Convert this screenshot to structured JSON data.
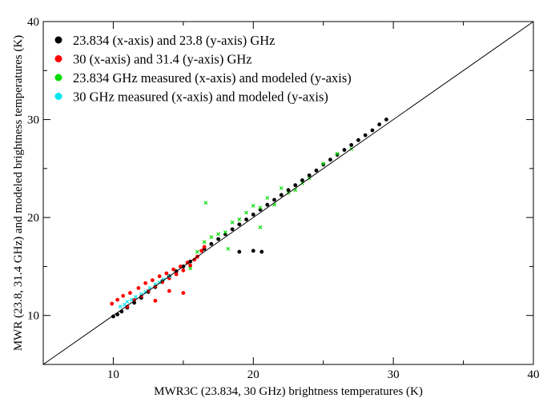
{
  "chart_data": {
    "type": "scatter",
    "title": "",
    "xlabel": "MWR3C (23.834, 30 GHz) brightness temperatures (K)",
    "ylabel": "MWR (23.8, 31.4 GHz) and modeled brightness temperatures  (K)",
    "xlim": [
      5,
      40
    ],
    "ylim": [
      5,
      40
    ],
    "x_ticks": [
      10,
      20,
      30,
      40
    ],
    "y_ticks": [
      10,
      20,
      30,
      40
    ],
    "grid": false,
    "legend_position": "top-left",
    "reference_line": {
      "from": [
        5,
        5
      ],
      "to": [
        40,
        40
      ]
    },
    "series": [
      {
        "name": "23.834 (x-axis) and 23.8 (y-axis) GHz",
        "color": "#000000",
        "marker": "dot",
        "points": [
          [
            10.0,
            9.9
          ],
          [
            10.3,
            10.1
          ],
          [
            10.6,
            10.4
          ],
          [
            11.0,
            10.8
          ],
          [
            11.5,
            11.3
          ],
          [
            12.0,
            11.8
          ],
          [
            12.5,
            12.4
          ],
          [
            13.0,
            12.9
          ],
          [
            13.5,
            13.5
          ],
          [
            14.0,
            14.0
          ],
          [
            14.5,
            14.5
          ],
          [
            15.0,
            15.0
          ],
          [
            15.5,
            15.5
          ],
          [
            16.0,
            16.0
          ],
          [
            16.5,
            16.8
          ],
          [
            17.0,
            17.3
          ],
          [
            17.5,
            17.8
          ],
          [
            18.0,
            18.3
          ],
          [
            18.5,
            18.8
          ],
          [
            19.0,
            19.3
          ],
          [
            19.5,
            19.8
          ],
          [
            20.0,
            20.3
          ],
          [
            20.5,
            20.8
          ],
          [
            21.0,
            21.3
          ],
          [
            21.5,
            21.8
          ],
          [
            22.0,
            22.3
          ],
          [
            22.5,
            22.8
          ],
          [
            23.0,
            23.3
          ],
          [
            23.5,
            23.8
          ],
          [
            24.0,
            24.3
          ],
          [
            24.5,
            24.8
          ],
          [
            25.0,
            25.4
          ],
          [
            25.5,
            25.9
          ],
          [
            26.0,
            26.4
          ],
          [
            26.5,
            26.9
          ],
          [
            27.0,
            27.4
          ],
          [
            27.5,
            27.9
          ],
          [
            28.0,
            28.4
          ],
          [
            28.5,
            28.9
          ],
          [
            29.0,
            29.5
          ],
          [
            29.5,
            30.0
          ],
          [
            19.0,
            16.5
          ],
          [
            20.0,
            16.6
          ],
          [
            20.6,
            16.5
          ]
        ]
      },
      {
        "name": "30 (x-axis) and 31.4 (y-axis) GHz",
        "color": "#ff0000",
        "marker": "dot",
        "points": [
          [
            9.9,
            11.2
          ],
          [
            10.3,
            11.6
          ],
          [
            10.7,
            12.0
          ],
          [
            11.0,
            10.9
          ],
          [
            11.2,
            12.3
          ],
          [
            11.5,
            11.6
          ],
          [
            11.8,
            12.8
          ],
          [
            12.0,
            12.0
          ],
          [
            12.3,
            13.3
          ],
          [
            12.5,
            12.5
          ],
          [
            12.8,
            13.6
          ],
          [
            13.0,
            13.0
          ],
          [
            13.3,
            14.0
          ],
          [
            13.5,
            13.4
          ],
          [
            13.8,
            14.3
          ],
          [
            14.0,
            13.8
          ],
          [
            14.3,
            14.7
          ],
          [
            14.5,
            14.2
          ],
          [
            14.8,
            15.0
          ],
          [
            15.0,
            14.6
          ],
          [
            15.3,
            15.4
          ],
          [
            15.5,
            15.1
          ],
          [
            15.8,
            15.7
          ],
          [
            16.0,
            16.0
          ],
          [
            16.3,
            16.6
          ],
          [
            16.5,
            17.0
          ],
          [
            13.0,
            11.5
          ],
          [
            14.0,
            12.5
          ],
          [
            15.0,
            12.3
          ]
        ]
      },
      {
        "name": "23.834 GHz measured (x-axis) and modeled (y-axis)",
        "color": "#00dd00",
        "marker": "x",
        "points": [
          [
            15.5,
            14.8
          ],
          [
            16.0,
            16.5
          ],
          [
            16.5,
            17.5
          ],
          [
            17.0,
            18.0
          ],
          [
            17.5,
            18.3
          ],
          [
            18.0,
            18.5
          ],
          [
            18.5,
            19.5
          ],
          [
            19.0,
            19.8
          ],
          [
            19.5,
            20.5
          ],
          [
            20.0,
            21.2
          ],
          [
            20.5,
            21.0
          ],
          [
            21.0,
            22.0
          ],
          [
            21.5,
            21.3
          ],
          [
            22.0,
            23.0
          ],
          [
            22.5,
            22.5
          ],
          [
            23.0,
            22.8
          ],
          [
            23.5,
            23.5
          ],
          [
            24.0,
            24.0
          ],
          [
            25.0,
            25.5
          ],
          [
            26.0,
            26.5
          ],
          [
            27.0,
            27.0
          ],
          [
            18.2,
            16.8
          ],
          [
            16.6,
            21.5
          ],
          [
            20.5,
            19.0
          ]
        ]
      },
      {
        "name": "30 GHz measured (x-axis) and modeled (y-axis)",
        "color": "#00e5ee",
        "marker": "x",
        "points": [
          [
            10.5,
            10.9
          ],
          [
            10.8,
            11.1
          ],
          [
            11.0,
            11.4
          ],
          [
            11.3,
            11.6
          ],
          [
            11.6,
            11.9
          ],
          [
            12.0,
            12.2
          ],
          [
            12.3,
            12.4
          ],
          [
            12.6,
            12.8
          ],
          [
            13.0,
            13.2
          ],
          [
            13.3,
            13.4
          ],
          [
            13.6,
            13.7
          ],
          [
            14.0,
            14.0
          ]
        ]
      }
    ]
  }
}
